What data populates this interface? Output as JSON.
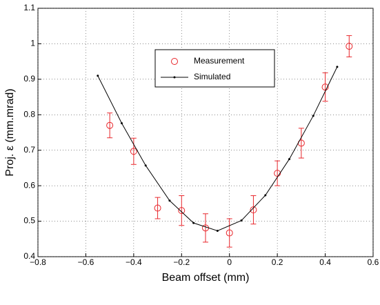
{
  "chart_data": {
    "type": "scatter",
    "xlabel": "Beam offset (mm)",
    "ylabel": "Proj. ε (mm.mrad)",
    "xlim": [
      -0.8,
      0.6
    ],
    "ylim": [
      0.4,
      1.1
    ],
    "xticks": [
      {
        "value": -0.8,
        "label": "−0.8"
      },
      {
        "value": -0.6,
        "label": "−0.6"
      },
      {
        "value": -0.4,
        "label": "−0.4"
      },
      {
        "value": -0.2,
        "label": "−0.2"
      },
      0,
      0.2,
      0.4,
      0.6
    ],
    "yticks": [
      0.4,
      0.5,
      0.6,
      0.7,
      0.8,
      0.9,
      1,
      1.1
    ],
    "grid": true,
    "series": [
      {
        "name": "Measurement",
        "color": "#e8262b",
        "marker": "circle",
        "x": [
          -0.5,
          -0.4,
          -0.3,
          -0.2,
          -0.1,
          0,
          0.1,
          0.2,
          0.3,
          0.4,
          0.5
        ],
        "values": [
          0.77,
          0.697,
          0.537,
          0.53,
          0.481,
          0.467,
          0.532,
          0.635,
          0.72,
          0.878,
          0.993
        ],
        "errors": [
          0.035,
          0.037,
          0.03,
          0.042,
          0.04,
          0.04,
          0.04,
          0.035,
          0.042,
          0.04,
          0.03
        ]
      },
      {
        "name": "Simulated",
        "color": "#000000",
        "marker": "line",
        "x": [
          -0.55,
          -0.45,
          -0.35,
          -0.25,
          -0.15,
          -0.05,
          0.05,
          0.15,
          0.25,
          0.35,
          0.45
        ],
        "values": [
          0.91,
          0.776,
          0.657,
          0.558,
          0.495,
          0.473,
          0.502,
          0.573,
          0.675,
          0.797,
          0.935
        ]
      }
    ]
  }
}
